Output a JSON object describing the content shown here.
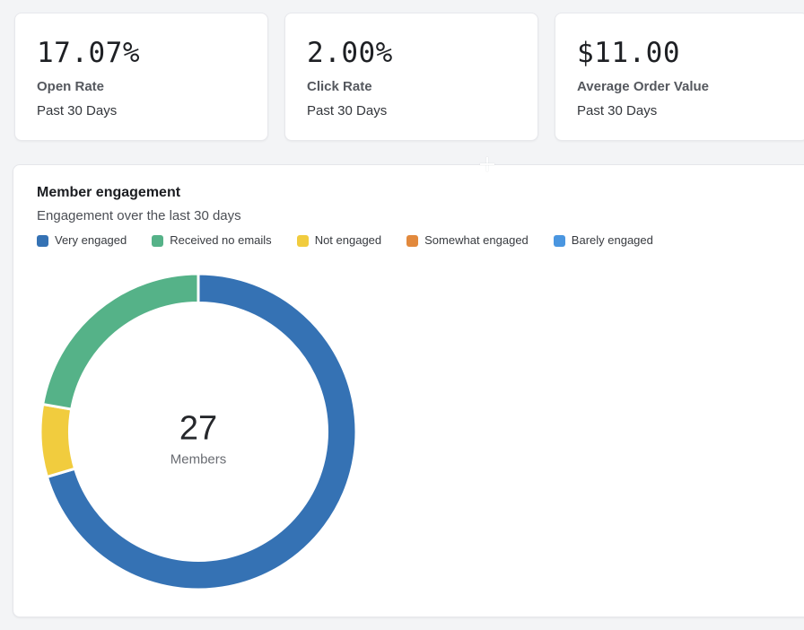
{
  "page": {
    "background": "#f3f4f6"
  },
  "stat_cards": [
    {
      "value": "17.07%",
      "label": "Open Rate",
      "period": "Past 30 Days"
    },
    {
      "value": "2.00%",
      "label": "Click Rate",
      "period": "Past 30 Days"
    },
    {
      "value": "$11.00",
      "label": "Average Order Value",
      "period": "Past 30 Days"
    }
  ],
  "chart_data": {
    "type": "donut",
    "title": "Member engagement",
    "subtitle": "Engagement over the last 30 days",
    "total": 27,
    "center_label": "Members",
    "legend_position": "top",
    "direction": "clockwise",
    "start_angle_deg": 0,
    "segments": [
      {
        "label": "Very engaged",
        "value": 19,
        "color": "#3572b4"
      },
      {
        "label": "Received no emails",
        "value": 6,
        "color": "#55b288"
      },
      {
        "label": "Not engaged",
        "value": 2,
        "color": "#f1cc3e"
      },
      {
        "label": "Somewhat engaged",
        "value": 0,
        "color": "#e2893d"
      },
      {
        "label": "Barely engaged",
        "value": 0,
        "color": "#4a96e0"
      }
    ],
    "draw_order": [
      0,
      2,
      1,
      3,
      4
    ]
  }
}
